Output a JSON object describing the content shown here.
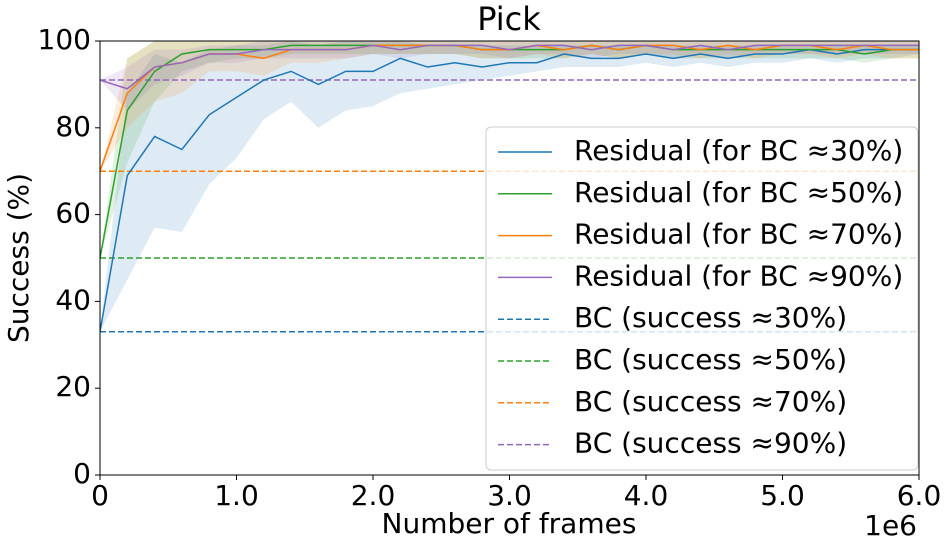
{
  "chart_data": {
    "type": "line",
    "title": "Pick",
    "x_label": "Number of frames",
    "y_label": "Success (%)",
    "x_offset_label": "1e6",
    "xlim": [
      0,
      6000000
    ],
    "ylim": [
      0,
      100
    ],
    "xticks": [
      0,
      {
        "value": 1000000,
        "label": "1.0"
      },
      {
        "value": 2000000,
        "label": "2.0"
      },
      {
        "value": 3000000,
        "label": "3.0"
      },
      {
        "value": 4000000,
        "label": "4.0"
      },
      {
        "value": 5000000,
        "label": "5.0"
      },
      {
        "value": 6000000,
        "label": "6.0"
      }
    ],
    "yticks": [
      0,
      20,
      40,
      60,
      80,
      100
    ],
    "legend": "lower right",
    "x": [
      0,
      200000,
      400000,
      600000,
      800000,
      1000000,
      1200000,
      1400000,
      1600000,
      1800000,
      2000000,
      2200000,
      2400000,
      2600000,
      2800000,
      3000000,
      3200000,
      3400000,
      3600000,
      3800000,
      4000000,
      4200000,
      4400000,
      4600000,
      4800000,
      5000000,
      5200000,
      5400000,
      5600000,
      5800000,
      6000000
    ],
    "series": [
      {
        "name": "Residual (for BC ≈30%)",
        "color": "#1f77b4",
        "values": [
          33,
          69,
          78,
          75,
          83,
          87,
          91,
          93,
          90,
          93,
          93,
          96,
          94,
          95,
          94,
          95,
          95,
          97,
          96,
          96,
          97,
          96,
          97,
          96,
          97,
          97,
          98,
          97,
          98,
          98,
          98
        ],
        "lower": [
          33,
          45,
          57,
          56,
          67,
          73,
          82,
          86,
          80,
          84,
          85,
          88,
          89,
          90,
          91,
          92,
          93,
          94,
          94,
          94,
          95,
          94,
          95,
          94,
          95,
          95,
          96,
          95,
          96,
          96,
          97
        ],
        "upper": [
          33,
          88,
          97,
          95,
          98,
          99,
          99,
          100,
          99,
          100,
          100,
          100,
          99,
          99,
          99,
          99,
          99,
          99,
          99,
          99,
          99,
          99,
          99,
          99,
          99,
          99,
          99,
          99,
          99,
          99,
          99
        ]
      },
      {
        "name": "Residual (for BC ≈50%)",
        "color": "#2ca02c",
        "values": [
          50,
          84,
          93,
          97,
          98,
          98,
          98,
          99,
          99,
          99,
          99,
          99,
          99,
          99,
          98,
          98,
          98,
          98,
          99,
          98,
          99,
          98,
          98,
          98,
          98,
          98,
          98,
          98,
          97,
          98,
          98
        ],
        "lower": [
          50,
          72,
          86,
          93,
          95,
          96,
          96,
          97,
          97,
          97,
          97,
          97,
          97,
          97,
          96,
          96,
          96,
          96,
          97,
          96,
          97,
          96,
          96,
          96,
          96,
          96,
          96,
          96,
          95,
          96,
          96
        ],
        "upper": [
          50,
          96,
          100,
          100,
          100,
          100,
          100,
          100,
          100,
          100,
          100,
          100,
          100,
          100,
          100,
          100,
          100,
          100,
          100,
          100,
          100,
          100,
          100,
          100,
          100,
          100,
          100,
          100,
          100,
          100,
          100
        ]
      },
      {
        "name": "Residual (for BC ≈70%)",
        "color": "#ff7f0e",
        "values": [
          70,
          88,
          94,
          95,
          97,
          97,
          96,
          98,
          98,
          98,
          99,
          99,
          99,
          99,
          98,
          98,
          99,
          98,
          99,
          98,
          99,
          99,
          98,
          99,
          98,
          99,
          99,
          98,
          99,
          98,
          98
        ],
        "lower": [
          70,
          80,
          86,
          88,
          93,
          93,
          92,
          95,
          95,
          96,
          97,
          97,
          97,
          97,
          96,
          96,
          97,
          96,
          97,
          96,
          97,
          97,
          96,
          97,
          96,
          97,
          97,
          96,
          97,
          96,
          96
        ],
        "upper": [
          70,
          96,
          100,
          100,
          100,
          100,
          100,
          100,
          100,
          100,
          100,
          100,
          100,
          100,
          100,
          100,
          100,
          100,
          100,
          100,
          100,
          100,
          100,
          100,
          100,
          100,
          100,
          100,
          100,
          100,
          100
        ]
      },
      {
        "name": "Residual (for BC ≈90%)",
        "color": "#9467bd",
        "values": [
          91,
          89,
          94,
          95,
          97,
          97,
          98,
          98,
          98,
          98,
          99,
          98,
          99,
          99,
          99,
          98,
          99,
          99,
          98,
          99,
          99,
          98,
          99,
          98,
          99,
          99,
          99,
          99,
          99,
          99,
          99
        ],
        "lower": [
          91,
          84,
          90,
          92,
          95,
          95,
          96,
          96,
          96,
          96,
          97,
          96,
          97,
          97,
          97,
          96,
          97,
          97,
          96,
          97,
          97,
          96,
          97,
          96,
          97,
          97,
          97,
          97,
          97,
          97,
          97
        ],
        "upper": [
          91,
          94,
          98,
          98,
          99,
          99,
          100,
          100,
          100,
          100,
          100,
          100,
          100,
          100,
          100,
          100,
          100,
          100,
          100,
          100,
          100,
          100,
          100,
          100,
          100,
          100,
          100,
          100,
          100,
          100,
          100
        ]
      }
    ],
    "hlines": [
      {
        "name": "BC (success ≈30%)",
        "color": "#1f77b4",
        "value": 33
      },
      {
        "name": "BC (success ≈50%)",
        "color": "#2ca02c",
        "value": 50
      },
      {
        "name": "BC (success ≈70%)",
        "color": "#ff7f0e",
        "value": 70
      },
      {
        "name": "BC (success ≈90%)",
        "color": "#9467bd",
        "value": 91
      }
    ]
  }
}
